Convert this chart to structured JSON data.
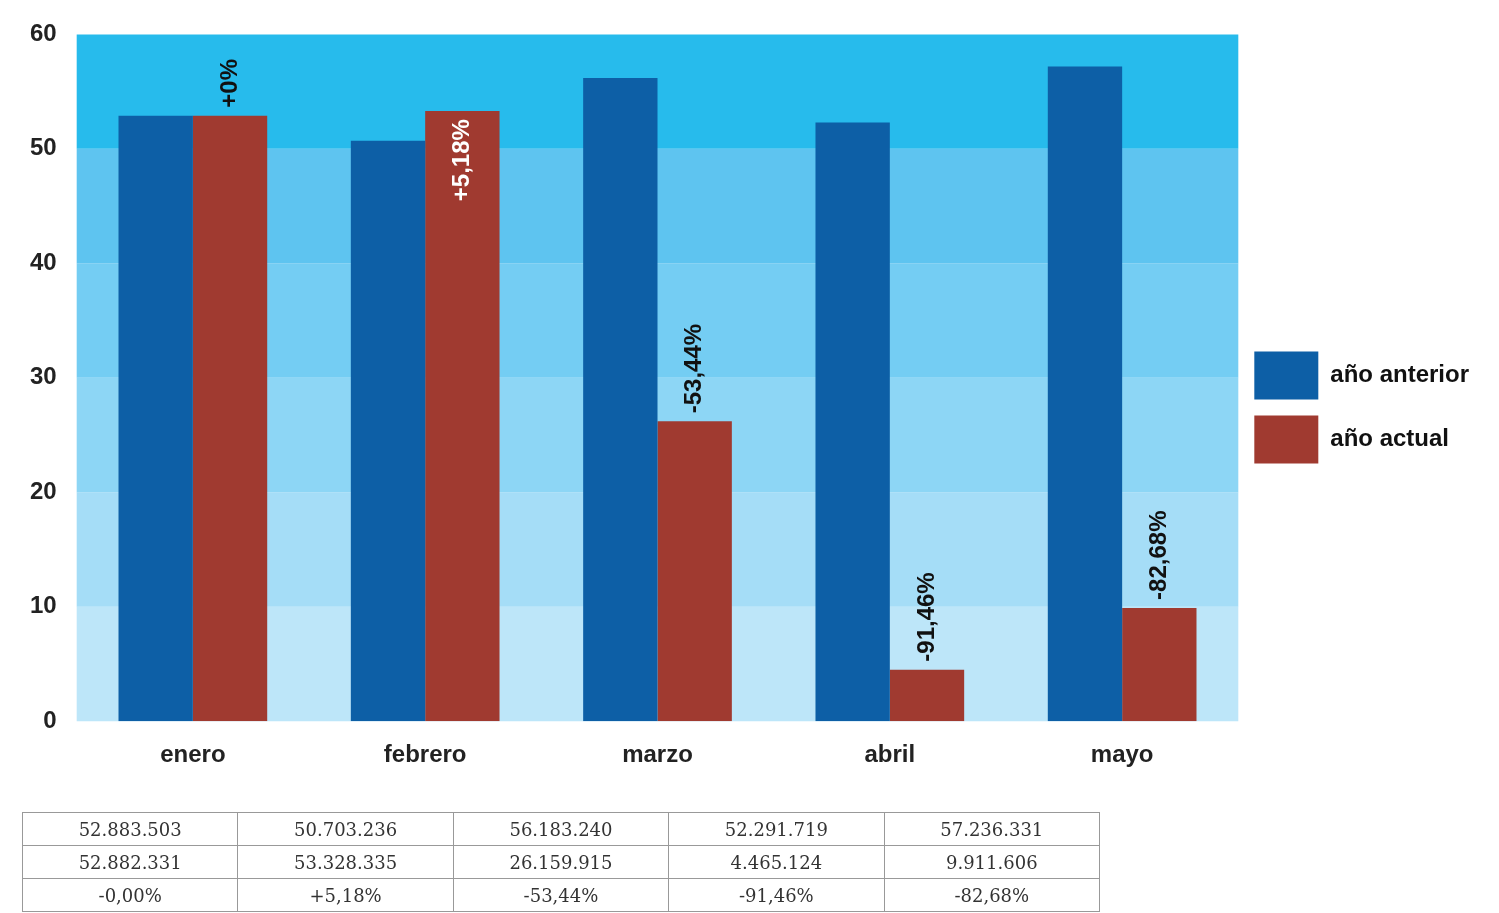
{
  "chart_data": {
    "type": "bar",
    "categories": [
      "enero",
      "febrero",
      "marzo",
      "abril",
      "mayo"
    ],
    "series": [
      {
        "name": "año anterior",
        "color": "#0d5fa6",
        "values": [
          52.9,
          50.7,
          56.2,
          52.3,
          57.2
        ]
      },
      {
        "name": "año actual",
        "color": "#a03a30",
        "values": [
          52.9,
          53.3,
          26.2,
          4.5,
          9.9
        ]
      }
    ],
    "ylim": [
      0,
      60
    ],
    "yticks": [
      0,
      10,
      20,
      30,
      40,
      50,
      60
    ],
    "grid": false,
    "legend": "right",
    "bands": [
      {
        "axis": "y",
        "from": 0,
        "to": 10,
        "color": "#bde6f9"
      },
      {
        "axis": "y",
        "from": 10,
        "to": 20,
        "color": "#a5ddf7"
      },
      {
        "axis": "y",
        "from": 20,
        "to": 30,
        "color": "#8dd6f5"
      },
      {
        "axis": "y",
        "from": 30,
        "to": 40,
        "color": "#74cdf3"
      },
      {
        "axis": "y",
        "from": 40,
        "to": 50,
        "color": "#5ec4f0"
      },
      {
        "axis": "y",
        "from": 50,
        "to": 60,
        "color": "#27bbec"
      }
    ],
    "annotations": [
      {
        "text": "+0%",
        "x": "enero",
        "y": 52.9
      },
      {
        "text": "+5,18%",
        "x": "febrero",
        "y": 53.3
      },
      {
        "text": "-53,44%",
        "x": "marzo",
        "y": 26.2
      },
      {
        "text": "-91,46%",
        "x": "abril",
        "y": 4.5
      },
      {
        "text": "-82,68%",
        "x": "mayo",
        "y": 9.9
      },
      "52.883.503",
      "50.703.236",
      "56.183.240",
      "52.291.719",
      "57.236.331",
      "52.882.331",
      "53.328.335",
      "26.159.915",
      "4.465.124",
      "9.911.606",
      "-0,00%",
      "+5,18%",
      "-53,44%",
      "-91,46%",
      "-82,68%"
    ]
  }
}
